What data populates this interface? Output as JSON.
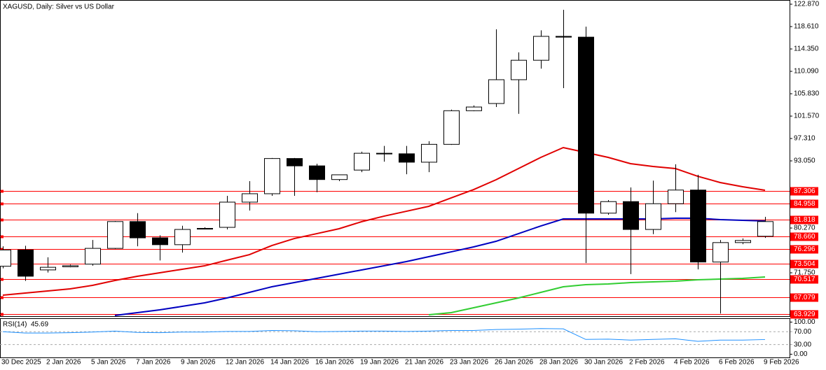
{
  "chart_data": [
    {
      "type": "candlestick",
      "title": "XAGUSD, Daily:  Silver vs US Dollar",
      "categories": [
        "30 Dec 2025",
        null,
        "2 Jan 2026",
        null,
        "5 Jan 2026",
        null,
        "7 Jan 2026",
        null,
        "9 Jan 2026",
        null,
        "12 Jan 2026",
        null,
        "14 Jan 2026",
        null,
        "16 Jan 2026",
        null,
        "19 Jan 2026",
        null,
        "21 Jan 2026",
        null,
        "23 Jan 2026",
        null,
        "26 Jan 2026",
        null,
        "28 Jan 2026",
        null,
        "30 Jan 2026",
        null,
        "2 Feb 2026",
        null,
        "4 Feb 2026",
        null,
        "6 Feb 2026",
        null,
        "9 Feb 2026"
      ],
      "open": [
        73.0,
        76.1,
        72.3,
        72.9,
        73.4,
        76.4,
        81.5,
        78.4,
        77.1,
        80.1,
        80.4,
        85.2,
        86.8,
        93.5,
        92.1,
        89.5,
        91.3,
        94.5,
        94.4,
        92.8,
        96.2,
        102.6,
        103.97,
        108.5,
        112.2,
        116.75,
        116.6,
        83.1,
        85.3,
        80.0,
        84.9,
        87.5,
        73.8,
        77.5,
        78.7
      ],
      "high": [
        76.8,
        76.9,
        74.7,
        73.3,
        78.0,
        81.6,
        83.1,
        78.9,
        80.7,
        80.4,
        86.4,
        89.2,
        93.6,
        93.6,
        92.5,
        90.4,
        94.8,
        95.9,
        95.9,
        96.8,
        102.8,
        103.6,
        118.1,
        113.7,
        117.9,
        121.8,
        118.6,
        85.6,
        88.0,
        89.3,
        92.4,
        90.4,
        78.0,
        78.3,
        82.4
      ],
      "low": [
        72.6,
        70.2,
        71.8,
        72.8,
        73.1,
        76.3,
        76.8,
        74.1,
        75.6,
        80.0,
        80.0,
        83.6,
        86.4,
        86.4,
        87.1,
        89.2,
        90.9,
        92.9,
        90.5,
        90.9,
        96.1,
        102.5,
        103.3,
        102.0,
        110.6,
        106.9,
        73.6,
        82.8,
        71.5,
        79.1,
        83.3,
        72.4,
        64.0,
        77.2,
        78.4
      ],
      "close": [
        76.1,
        71.1,
        72.8,
        73.1,
        76.4,
        81.5,
        78.4,
        77.1,
        80.0,
        80.2,
        85.2,
        86.8,
        93.5,
        92.1,
        89.5,
        90.4,
        94.5,
        94.4,
        92.8,
        96.2,
        102.6,
        103.3,
        108.5,
        112.2,
        116.75,
        116.6,
        83.1,
        85.3,
        80.0,
        84.9,
        87.5,
        73.8,
        77.5,
        77.9,
        81.5
      ],
      "up_color": "#ffffff",
      "down_color": "#000000",
      "overlays": [
        {
          "color": "#e00000",
          "values": [
            67.49,
            67.89,
            68.29,
            68.69,
            69.36,
            70.29,
            71.09,
            71.75,
            72.42,
            73.08,
            74.15,
            75.21,
            76.94,
            78.27,
            79.2,
            80.14,
            81.47,
            82.53,
            83.46,
            84.4,
            86.0,
            87.59,
            89.46,
            91.59,
            93.72,
            95.58,
            94.65,
            93.72,
            92.52,
            91.99,
            91.59,
            90.12,
            88.93,
            88.13,
            87.46
          ]
        },
        {
          "color": "#0000c0",
          "values": [
            null,
            null,
            null,
            null,
            null,
            63.63,
            64.17,
            64.7,
            65.36,
            66.03,
            66.96,
            68.03,
            69.09,
            69.89,
            70.69,
            71.49,
            72.29,
            73.08,
            73.88,
            74.81,
            75.74,
            76.68,
            77.74,
            79.2,
            80.67,
            82.0,
            82.0,
            82.0,
            82.0,
            82.0,
            82.14,
            82.14,
            81.87,
            81.74,
            81.6
          ]
        },
        {
          "color": "#32cd32",
          "values": [
            null,
            null,
            null,
            null,
            null,
            null,
            null,
            null,
            null,
            null,
            null,
            null,
            null,
            null,
            null,
            null,
            null,
            null,
            null,
            63.77,
            64.17,
            65.1,
            66.03,
            66.96,
            68.03,
            69.09,
            69.49,
            69.62,
            69.89,
            70.02,
            70.15,
            70.42,
            70.55,
            70.69,
            70.95
          ]
        }
      ],
      "ylim": [
        63.5,
        123.67
      ],
      "yticks": [
        {
          "value": 122.87,
          "label": "122.870"
        },
        {
          "value": 118.61,
          "label": "118.610"
        },
        {
          "value": 114.35,
          "label": "114.350"
        },
        {
          "value": 110.09,
          "label": "110.090"
        },
        {
          "value": 105.83,
          "label": "105.830"
        },
        {
          "value": 101.57,
          "label": "101.570"
        },
        {
          "value": 97.31,
          "label": "97.310"
        },
        {
          "value": 93.05,
          "label": "93.050"
        },
        {
          "value": 80.27,
          "label": "80.270"
        },
        {
          "value": 71.75,
          "label": "71.750"
        }
      ],
      "levels": [
        87.306,
        84.958,
        81.818,
        {
          "value": 78.66,
          "label": "78.660"
        },
        76.296,
        73.504,
        70.517,
        67.079,
        63.929
      ],
      "level_color": "#ff0000"
    },
    {
      "type": "line",
      "title": "RSI(14)",
      "values": [
        70,
        66,
        66,
        67,
        69,
        72,
        68,
        67,
        69,
        69,
        71,
        71,
        74,
        73,
        70,
        71,
        72,
        72,
        71,
        72,
        74,
        74,
        77,
        78,
        80,
        79,
        46,
        47,
        44,
        46,
        48,
        40,
        44,
        44,
        45.69
      ],
      "color": "#1e90ff",
      "ylim": [
        -10,
        112
      ],
      "yticks": [
        {
          "value": 100,
          "label": "100.00"
        },
        {
          "value": 70,
          "label": "70.00"
        },
        {
          "value": 30,
          "label": "30.00"
        },
        {
          "value": 0,
          "label": "0.00"
        }
      ]
    }
  ]
}
